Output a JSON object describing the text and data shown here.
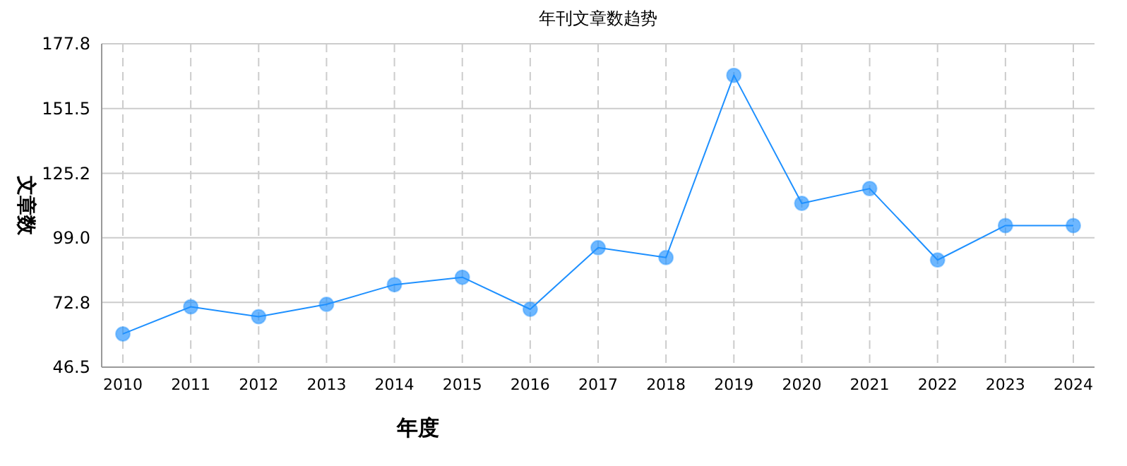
{
  "chart_data": {
    "type": "line",
    "title": "年刊文章数趋势",
    "xlabel": "年度",
    "ylabel": "文章数",
    "categories": [
      "2010",
      "2011",
      "2012",
      "2013",
      "2014",
      "2015",
      "2016",
      "2017",
      "2018",
      "2019",
      "2020",
      "2021",
      "2022",
      "2023",
      "2024"
    ],
    "series": [
      {
        "color": "#1e90ff",
        "values": [
          60,
          71,
          67,
          72,
          80,
          83,
          70,
          95,
          91,
          165,
          113,
          119,
          90,
          104,
          104
        ]
      }
    ],
    "ylim": [
      46.5,
      177.8
    ],
    "yticks": [
      46.5,
      72.8,
      {
        "value": 99,
        "label": "99.0"
      },
      125.2,
      151.5,
      177.8
    ],
    "grid": true,
    "marker": "circle"
  }
}
